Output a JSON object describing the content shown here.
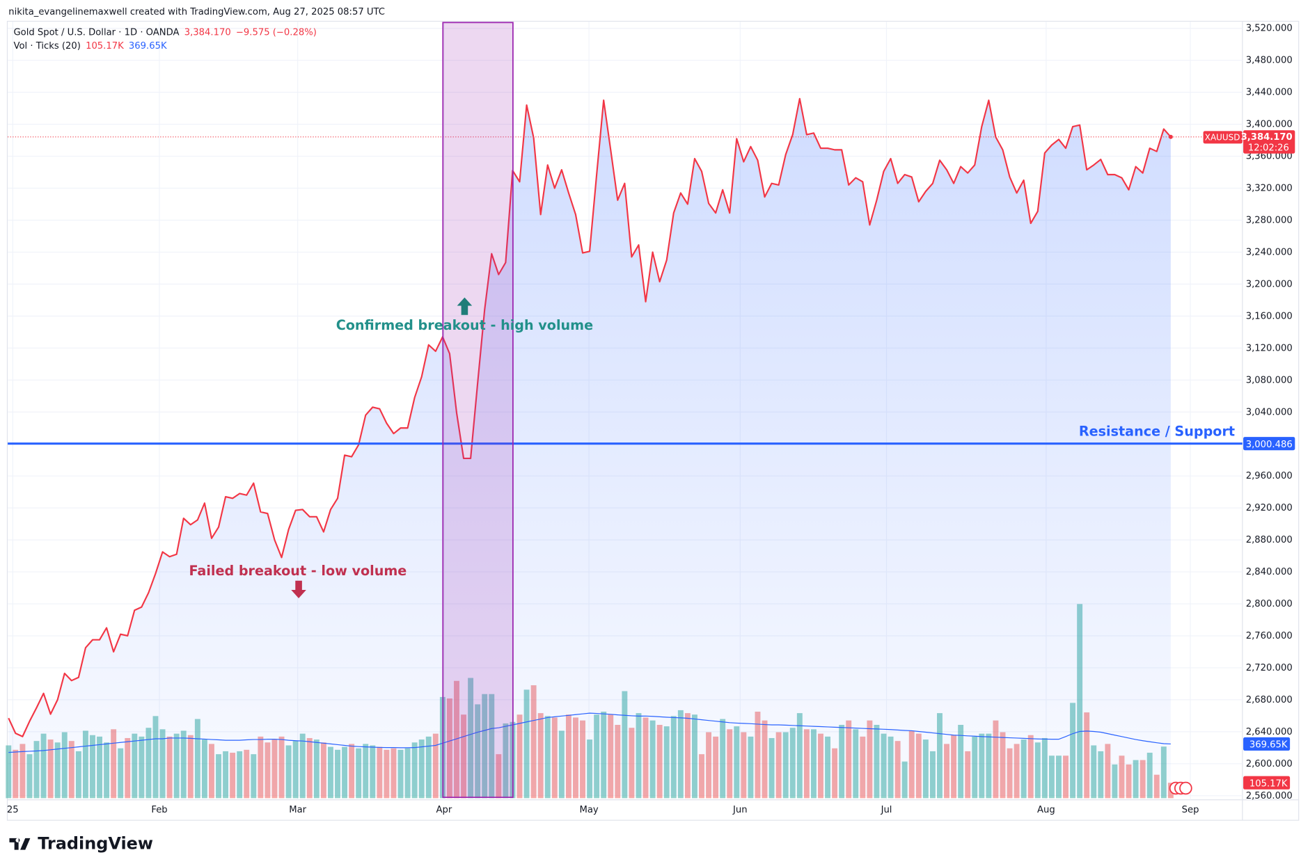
{
  "header": "nikita_evangelinemaxwell created with TradingView.com, Aug 27, 2025 08:57 UTC",
  "footer_logo": "TradingView",
  "chart_data": {
    "type": "line",
    "legend": {
      "symbol": "Gold Spot / U.S. Dollar · 1D · OANDA",
      "last": "3,384.170",
      "change": "−9.575 (−0.28%)",
      "volume": "Vol · Ticks (20)"
    },
    "xlim": [
      0,
      176
    ],
    "xticks": [
      {
        "value": 0.6,
        "label": "25"
      },
      {
        "value": 21.55,
        "label": "Feb"
      },
      {
        "value": 41.3,
        "label": "Mar"
      },
      {
        "value": 62.2,
        "label": "Apr"
      },
      {
        "value": 82.9,
        "label": "May"
      },
      {
        "value": 104.5,
        "label": "Jun"
      },
      {
        "value": 125.4,
        "label": "Jul"
      },
      {
        "value": 148.2,
        "label": "Aug"
      },
      {
        "value": 168.8,
        "label": "Sep"
      }
    ],
    "ylim": [
      2560,
      3520
    ],
    "yticks": [
      {
        "value": 2560,
        "label": "2,560.000"
      },
      {
        "value": 2600,
        "label": "2,600.000"
      },
      {
        "value": 2640,
        "label": "2,640.000"
      },
      {
        "value": 2680,
        "label": "2,680.000"
      },
      {
        "value": 2720,
        "label": "2,720.000"
      },
      {
        "value": 2760,
        "label": "2,760.000"
      },
      {
        "value": 2800,
        "label": "2,800.000"
      },
      {
        "value": 2840,
        "label": "2,840.000"
      },
      {
        "value": 2880,
        "label": "2,880.000"
      },
      {
        "value": 2920,
        "label": "2,920.000"
      },
      {
        "value": 2960,
        "label": "2,960.000"
      },
      {
        "value": 3040,
        "label": "3,040.000"
      },
      {
        "value": 3080,
        "label": "3,080.000"
      },
      {
        "value": 3120,
        "label": "3,120.000"
      },
      {
        "value": 3160,
        "label": "3,160.000"
      },
      {
        "value": 3200,
        "label": "3,200.000"
      },
      {
        "value": 3240,
        "label": "3,240.000"
      },
      {
        "value": 3280,
        "label": "3,280.000"
      },
      {
        "value": 3320,
        "label": "3,320.000"
      },
      {
        "value": 3360,
        "label": "3,360.000"
      },
      {
        "value": 3400,
        "label": "3,400.000"
      },
      {
        "value": 3440,
        "label": "3,440.000"
      },
      {
        "value": 3480,
        "label": "3,480.000"
      },
      {
        "value": 3520,
        "label": "3,520.000"
      }
    ],
    "grid": true,
    "series": [
      {
        "name": "XAUUSD",
        "color": "#f23645",
        "values": [
          2657,
          2638,
          2634,
          2653,
          2670,
          2688,
          2662,
          2680,
          2713,
          2704,
          2708,
          2745,
          2755,
          2755,
          2770,
          2740,
          2762,
          2760,
          2792,
          2796,
          2814,
          2838,
          2865,
          2859,
          2862,
          2907,
          2899,
          2905,
          2926,
          2882,
          2896,
          2934,
          2932,
          2938,
          2936,
          2951,
          2915,
          2913,
          2880,
          2858,
          2893,
          2917,
          2918,
          2909,
          2909,
          2890,
          2918,
          2932,
          2986,
          2984,
          2999,
          3036,
          3046,
          3044,
          3026,
          3013,
          3020,
          3020,
          3058,
          3084,
          3124,
          3116,
          3134,
          3113,
          3039,
          2982,
          2982,
          3076,
          3168,
          3238,
          3212,
          3227,
          3342,
          3328,
          3424,
          3383,
          3287,
          3349,
          3320,
          3343,
          3314,
          3287,
          3239,
          3241,
          3337,
          3430,
          3368,
          3305,
          3326,
          3234,
          3249,
          3178,
          3240,
          3203,
          3230,
          3289,
          3314,
          3300,
          3357,
          3341,
          3301,
          3289,
          3318,
          3289,
          3382,
          3353,
          3372,
          3355,
          3309,
          3326,
          3324,
          3362,
          3387,
          3432,
          3387,
          3389,
          3370,
          3370,
          3368,
          3368,
          3324,
          3333,
          3328,
          3274,
          3305,
          3341,
          3357,
          3326,
          3337,
          3334,
          3303,
          3316,
          3326,
          3355,
          3343,
          3326,
          3347,
          3339,
          3349,
          3397,
          3430,
          3384,
          3368,
          3334,
          3314,
          3330,
          3276,
          3291,
          3364,
          3374,
          3381,
          3370,
          3397,
          3399,
          3343,
          3349,
          3356,
          3337,
          3337,
          3333,
          3318,
          3347,
          3339,
          3370,
          3366,
          3394,
          3384.17
        ]
      }
    ],
    "last_price": {
      "value": 3384.17,
      "label": "3,384.170",
      "countdown": "12:02:26",
      "symbol": "XAUUSD"
    },
    "level": {
      "value": 3000.486,
      "label": "3,000.486",
      "text": "Resistance / Support",
      "color": "#2962ff"
    },
    "annotations": {
      "confirmed": "Confirmed breakout - high volume",
      "failed": "Failed breakout - low volume"
    },
    "volume": {
      "up_color": "#26a69a",
      "down_color": "#ef5350",
      "ma_color": "#2962ff",
      "values": [
        360,
        330,
        370,
        300,
        390,
        440,
        400,
        380,
        450,
        390,
        320,
        460,
        430,
        420,
        380,
        470,
        340,
        410,
        440,
        420,
        480,
        560,
        470,
        420,
        440,
        460,
        430,
        540,
        400,
        370,
        300,
        320,
        310,
        320,
        330,
        300,
        420,
        380,
        400,
        420,
        360,
        390,
        440,
        410,
        400,
        380,
        350,
        330,
        350,
        370,
        340,
        370,
        360,
        350,
        330,
        340,
        330,
        340,
        380,
        400,
        420,
        440,
        690,
        680,
        800,
        570,
        820,
        640,
        710,
        710,
        300,
        510,
        520,
        570,
        740,
        770,
        580,
        560,
        550,
        460,
        570,
        550,
        530,
        400,
        570,
        590,
        570,
        500,
        730,
        480,
        580,
        550,
        530,
        500,
        490,
        560,
        600,
        580,
        570,
        300,
        450,
        420,
        540,
        470,
        490,
        450,
        420,
        590,
        530,
        410,
        450,
        450,
        480,
        580,
        470,
        470,
        440,
        420,
        340,
        500,
        530,
        470,
        420,
        530,
        500,
        440,
        420,
        390,
        250,
        460,
        440,
        400,
        320,
        580,
        370,
        430,
        500,
        320,
        420,
        440,
        440,
        530,
        450,
        340,
        370,
        400,
        430,
        380,
        410,
        290,
        290,
        290,
        650,
        1324,
        585,
        360,
        320,
        370,
        230,
        290,
        230,
        260,
        260,
        310,
        160,
        352,
        105.17
      ],
      "ma": [
        312,
        315,
        318,
        320,
        322,
        325,
        330,
        335,
        340,
        345,
        350,
        355,
        360,
        365,
        370,
        375,
        380,
        385,
        390,
        395,
        400,
        405,
        405,
        410,
        410,
        410,
        408,
        405,
        403,
        400,
        398,
        395,
        395,
        395,
        398,
        400,
        400,
        402,
        402,
        400,
        395,
        392,
        390,
        385,
        380,
        375,
        370,
        365,
        360,
        355,
        352,
        350,
        348,
        346,
        345,
        345,
        344,
        344,
        345,
        350,
        355,
        360,
        375,
        390,
        405,
        420,
        435,
        450,
        462,
        475,
        480,
        490,
        500,
        510,
        520,
        530,
        540,
        550,
        555,
        560,
        565,
        570,
        575,
        580,
        578,
        575,
        572,
        568,
        565,
        562,
        560,
        560,
        558,
        555,
        552,
        550,
        548,
        545,
        540,
        535,
        530,
        525,
        520,
        515,
        512,
        510,
        508,
        505,
        502,
        500,
        500,
        498,
        496,
        494,
        492,
        490,
        488,
        486,
        484,
        482,
        480,
        478,
        476,
        474,
        472,
        470,
        468,
        465,
        462,
        460,
        455,
        450,
        445,
        440,
        435,
        430,
        428,
        425,
        423,
        420,
        418,
        416,
        414,
        412,
        410,
        408,
        406,
        404,
        403,
        402,
        402,
        420,
        440,
        455,
        458,
        455,
        450,
        440,
        430,
        420,
        410,
        400,
        392,
        385,
        378,
        372,
        369.65
      ],
      "last": {
        "value": 105.17,
        "label": "105.17K"
      },
      "last_ma": {
        "value": 369.65,
        "label": "369.65K"
      }
    }
  }
}
